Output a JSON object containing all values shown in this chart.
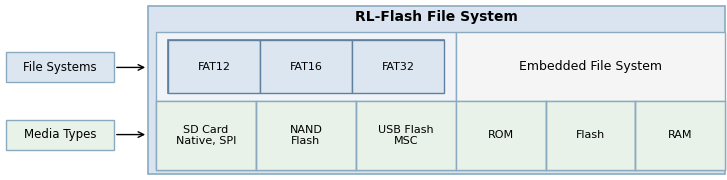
{
  "title": "RL-Flash File System",
  "bg_outer": "#d9e4f0",
  "bg_left_box_fs": "#dce6f1",
  "bg_left_box_mt": "#e8f2e8",
  "bg_inner_left_upper": "#dce6f1",
  "bg_inner_left_lower": "#e8f2e8",
  "bg_inner_right_upper": "#f5f5f5",
  "bg_inner_right_lower": "#e8f2e8",
  "bg_fat_cells": "#dce6f1",
  "border_outer": "#8aaabf",
  "border_inner": "#8aaabf",
  "border_fat": "#6080a0",
  "text_color": "#000000",
  "left_boxes": [
    "File Systems",
    "Media Types"
  ],
  "left_bg": [
    "#dce6f1",
    "#e8f2e8"
  ],
  "fat_labels": [
    "FAT12",
    "FAT16",
    "FAT32"
  ],
  "media_labels": [
    "SD Card\nNative, SPI",
    "NAND\nFlash",
    "USB Flash\nMSC"
  ],
  "embedded_label": "Embedded File System",
  "embedded_sub": [
    "ROM",
    "Flash",
    "RAM"
  ],
  "figsize": [
    7.27,
    1.8
  ],
  "dpi": 100
}
